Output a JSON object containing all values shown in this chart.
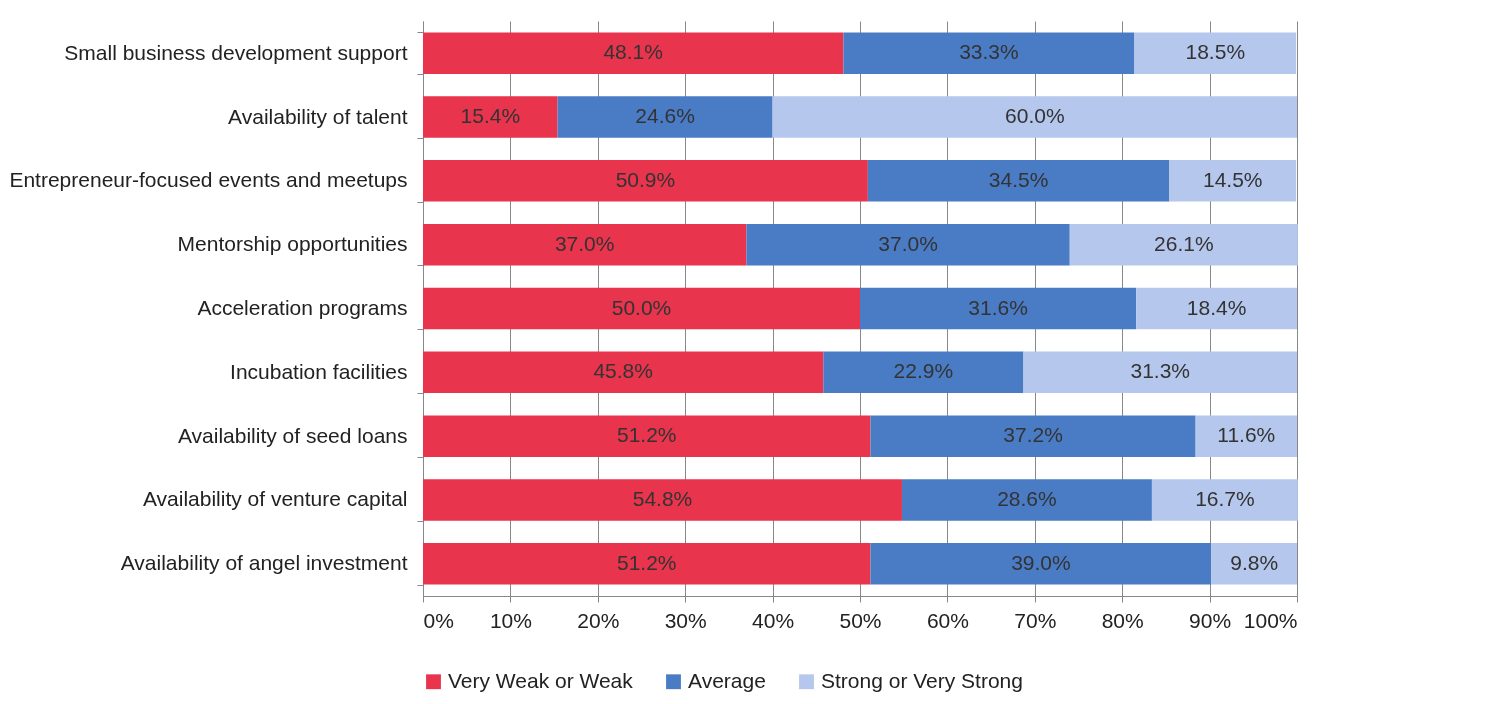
{
  "chart_data": {
    "type": "bar",
    "orientation": "horizontal",
    "stacked": true,
    "categories": [
      "Small business development support",
      "Availability of talent",
      "Entrepreneur-focused events and meetups",
      "Mentorship opportunities",
      "Acceleration programs",
      "Incubation facilities",
      "Availability of seed loans",
      "Availability of venture capital",
      "Availability of angel investment"
    ],
    "series": [
      {
        "name": "Very Weak or Weak",
        "color": "#e8344c",
        "values": [
          48.1,
          15.4,
          50.9,
          37.0,
          50.0,
          45.8,
          51.2,
          54.8,
          51.2
        ],
        "value_labels": [
          "48.1%",
          "15.4%",
          "50.9%",
          "37.0%",
          "50.0%",
          "45.8%",
          "51.2%",
          "54.8%",
          "51.2%"
        ]
      },
      {
        "name": "Average",
        "color": "#4a7cc6",
        "values": [
          33.3,
          24.6,
          34.5,
          37.0,
          31.6,
          22.9,
          37.2,
          28.6,
          39.0
        ],
        "value_labels": [
          "33.3%",
          "24.6%",
          "34.5%",
          "37.0%",
          "31.6%",
          "22.9%",
          "37.2%",
          "28.6%",
          "39.0%"
        ]
      },
      {
        "name": "Strong or Very Strong",
        "color": "#b5c7ec",
        "values": [
          18.5,
          60.0,
          14.5,
          26.1,
          18.4,
          31.3,
          11.6,
          16.7,
          9.8
        ],
        "value_labels": [
          "18.5%",
          "60.0%",
          "14.5%",
          "26.1%",
          "18.4%",
          "31.3%",
          "11.6%",
          "16.7%",
          "9.8%"
        ]
      }
    ],
    "xlim": [
      0,
      100
    ],
    "xticks": [
      {
        "value": 0,
        "label": "0%"
      },
      {
        "value": 10,
        "label": "10%"
      },
      {
        "value": 20,
        "label": "20%"
      },
      {
        "value": 30,
        "label": "30%"
      },
      {
        "value": 40,
        "label": "40%"
      },
      {
        "value": 50,
        "label": "50%"
      },
      {
        "value": 60,
        "label": "60%"
      },
      {
        "value": 70,
        "label": "70%"
      },
      {
        "value": 80,
        "label": "80%"
      },
      {
        "value": 90,
        "label": "90%"
      },
      {
        "value": 100,
        "label": "100%"
      }
    ],
    "grid": "x",
    "legend": "bottom"
  }
}
